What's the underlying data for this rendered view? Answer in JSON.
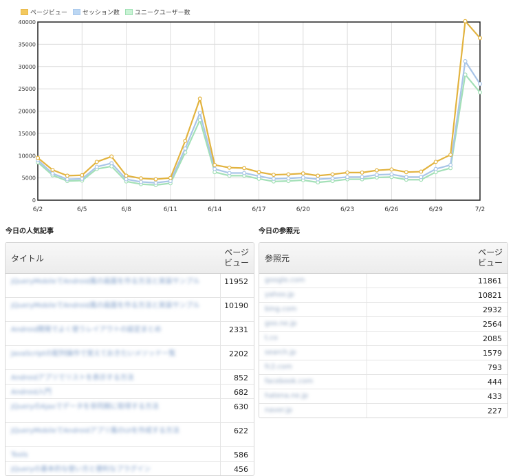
{
  "legend": [
    {
      "label": "ページビュー",
      "color": "#e8b84b",
      "fill": "#f3c95e"
    },
    {
      "label": "セッション数",
      "color": "#a9c8ec",
      "fill": "#bcd7f3"
    },
    {
      "label": "ユニークユーザー数",
      "color": "#9fe0b3",
      "fill": "#c9f3d5"
    }
  ],
  "chart_data": {
    "type": "line",
    "x": [
      "6/2",
      "6/3",
      "6/4",
      "6/5",
      "6/6",
      "6/7",
      "6/8",
      "6/9",
      "6/10",
      "6/11",
      "6/12",
      "6/13",
      "6/14",
      "6/15",
      "6/16",
      "6/17",
      "6/18",
      "6/19",
      "6/20",
      "6/21",
      "6/22",
      "6/23",
      "6/24",
      "6/25",
      "6/26",
      "6/27",
      "6/28",
      "6/29",
      "6/30",
      "7/1",
      "7/2"
    ],
    "x_tick_labels": [
      "6/2",
      "6/5",
      "6/8",
      "6/11",
      "6/14",
      "6/17",
      "6/20",
      "6/23",
      "6/26",
      "6/29",
      "7/2"
    ],
    "ylim": [
      0,
      40000
    ],
    "y_ticks": [
      0,
      5000,
      10000,
      15000,
      20000,
      25000,
      30000,
      35000,
      40000
    ],
    "y_tick_labels": [
      "0",
      "5000",
      "10000",
      "15000",
      "20000",
      "25000",
      "30000",
      "35000",
      "40000"
    ],
    "grid": true,
    "series": [
      {
        "name": "ページビュー",
        "color": "#e2b33f",
        "values": [
          9500,
          6800,
          5500,
          5600,
          8600,
          9800,
          5500,
          4900,
          4700,
          5000,
          13300,
          22800,
          7900,
          7300,
          7200,
          6300,
          5700,
          5800,
          6000,
          5500,
          5800,
          6200,
          6200,
          6700,
          6900,
          6300,
          6400,
          8600,
          10200,
          40200,
          36400
        ]
      },
      {
        "name": "セッション数",
        "color": "#a9c5e8",
        "values": [
          9000,
          6000,
          4700,
          4800,
          7500,
          8300,
          4700,
          4100,
          3900,
          4300,
          11600,
          19600,
          7000,
          6100,
          6100,
          5400,
          4800,
          4900,
          5100,
          4700,
          4900,
          5200,
          5200,
          5700,
          5800,
          5200,
          5200,
          7000,
          7900,
          31200,
          26100
        ]
      },
      {
        "name": "ユニークユーザー数",
        "color": "#a3e0b7",
        "values": [
          8500,
          5600,
          4300,
          4400,
          7000,
          7600,
          4200,
          3600,
          3400,
          3800,
          10700,
          18000,
          6300,
          5500,
          5500,
          4800,
          4200,
          4300,
          4500,
          4000,
          4300,
          4700,
          4700,
          5100,
          5200,
          4600,
          4600,
          6300,
          7200,
          28200,
          24200
        ]
      }
    ]
  },
  "popular": {
    "section_title": "今日の人気記事",
    "col_title": "タイトル",
    "col_views_line1": "ページ",
    "col_views_line2": "ビュー",
    "rows": [
      {
        "title": "jQueryMobileでAndroid風の画面を作る方法と実装サンプル",
        "value": "11952",
        "lines": 2
      },
      {
        "title": "jQueryMobileでAndroid風の画面を作る方法と実装サンプル",
        "value": "10190",
        "lines": 2
      },
      {
        "title": "Android開発でよく使うレイアウトの設定まとめ",
        "value": "2331",
        "lines": 2
      },
      {
        "title": "JavaScriptの配列操作で覚えておきたいメソッド一覧",
        "value": "2202",
        "lines": 2
      },
      {
        "title": "Androidアプリでリストを表示する方法",
        "value": "852",
        "lines": 1
      },
      {
        "title": "Android入門",
        "value": "682",
        "lines": 1
      },
      {
        "title": "jQueryのAjaxでデータを非同期に取得する方法",
        "value": "630",
        "lines": 2
      },
      {
        "title": "jQueryMobileでAndroidアプリ風のUIを作成する方法",
        "value": "622",
        "lines": 2
      },
      {
        "title": "Tools",
        "value": "586",
        "lines": 1
      },
      {
        "title": "jQueryの基本的な使い方と便利なプラグイン",
        "value": "456",
        "lines": 1
      }
    ]
  },
  "referrers": {
    "section_title": "今日の参照元",
    "col_title": "参照元",
    "col_views_line1": "ページ",
    "col_views_line2": "ビュー",
    "rows": [
      {
        "name": "google.com",
        "value": "11861"
      },
      {
        "name": "yahoo.jp",
        "value": "10821"
      },
      {
        "name": "bing.com",
        "value": "2932"
      },
      {
        "name": "goo.ne.jp",
        "value": "2564"
      },
      {
        "name": "t.co",
        "value": "2085"
      },
      {
        "name": "search.jp",
        "value": "1579"
      },
      {
        "name": "fc2.com",
        "value": "793"
      },
      {
        "name": "facebook.com",
        "value": "444"
      },
      {
        "name": "hatena.ne.jp",
        "value": "433"
      },
      {
        "name": "naver.jp",
        "value": "227"
      }
    ]
  }
}
